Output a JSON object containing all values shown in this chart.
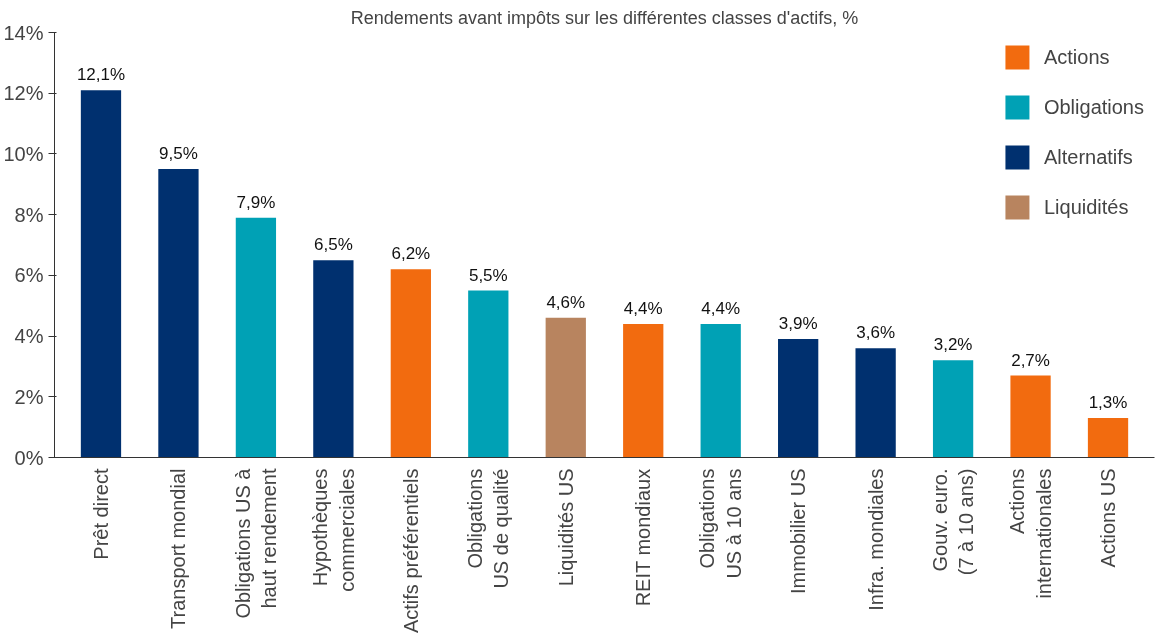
{
  "chart_data": {
    "type": "bar",
    "title": "Rendements avant impôts sur les différentes classes d'actifs, %",
    "categories": [
      "Prêt direct",
      "Transport mondial",
      "Obligations US à\nhaut rendement",
      "Hypothèques\ncommerciales",
      "Actifs préférentiels",
      "Obligations\nUS de qualité",
      "Liquidités US",
      "REIT mondiaux",
      "Obligations\nUS à 10 ans",
      "Immobilier US",
      "Infra. mondiales",
      "Gouv. euro.\n(7 à 10 ans)",
      "Actions\ninternationales",
      "Actions US"
    ],
    "series": [
      {
        "name": "Actions",
        "color": "#f26b0f",
        "values": [
          null,
          null,
          null,
          null,
          6.2,
          null,
          null,
          4.4,
          null,
          null,
          null,
          null,
          2.7,
          1.3
        ],
        "value_labels": [
          null,
          null,
          null,
          null,
          "6,2%",
          null,
          null,
          "4,4%",
          null,
          null,
          null,
          null,
          "2,7%",
          "1,3%"
        ]
      },
      {
        "name": "Obligations",
        "color": "#00a1b5",
        "values": [
          null,
          null,
          7.9,
          null,
          null,
          5.5,
          null,
          null,
          4.4,
          null,
          null,
          3.2,
          null,
          null
        ],
        "value_labels": [
          null,
          null,
          "7,9%",
          null,
          null,
          "5,5%",
          null,
          null,
          "4,4%",
          null,
          null,
          "3,2%",
          null,
          null
        ]
      },
      {
        "name": "Alternatifs",
        "color": "#00306f",
        "values": [
          12.1,
          9.5,
          null,
          6.5,
          null,
          null,
          null,
          null,
          null,
          3.9,
          3.6,
          null,
          null,
          null
        ],
        "value_labels": [
          "12,1%",
          "9,5%",
          null,
          "6,5%",
          null,
          null,
          null,
          null,
          null,
          "3,9%",
          "3,6%",
          null,
          null,
          null
        ]
      },
      {
        "name": "Liquidités",
        "color": "#b8845f",
        "values": [
          null,
          null,
          null,
          null,
          null,
          null,
          4.6,
          null,
          null,
          null,
          null,
          null,
          null,
          null
        ],
        "value_labels": [
          null,
          null,
          null,
          null,
          null,
          null,
          "4,6%",
          null,
          null,
          null,
          null,
          null,
          null,
          null
        ]
      }
    ],
    "ylim": [
      0,
      14
    ],
    "yticks": [
      {
        "value": 0,
        "label": "0%"
      },
      {
        "value": 2,
        "label": "2%"
      },
      {
        "value": 4,
        "label": "4%"
      },
      {
        "value": 6,
        "label": "6%"
      },
      {
        "value": 8,
        "label": "8%"
      },
      {
        "value": 10,
        "label": "10%"
      },
      {
        "value": 12,
        "label": "12%"
      },
      {
        "value": 14,
        "label": "14%"
      }
    ],
    "grid": false,
    "legend": "top right"
  }
}
